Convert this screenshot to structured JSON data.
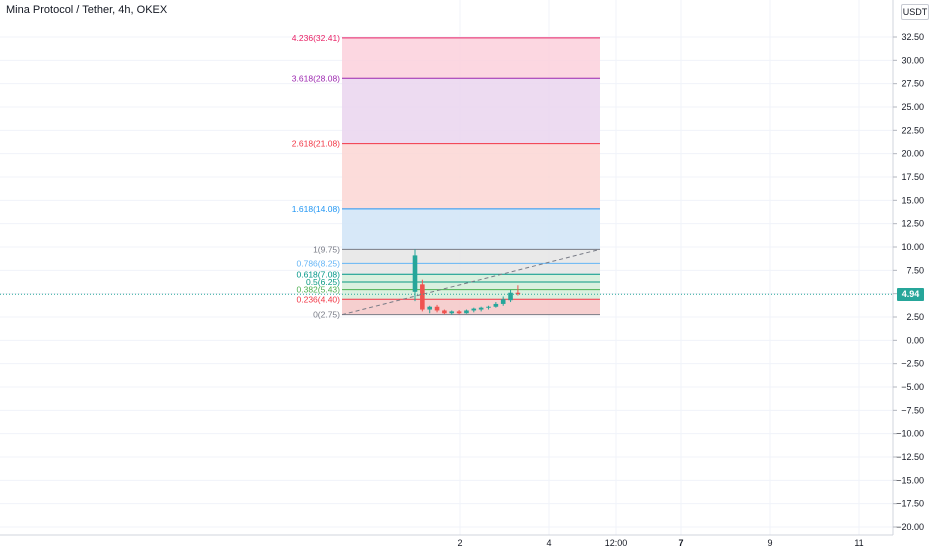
{
  "header": {
    "title": "Mina Protocol / Tether, 4h, OKEX",
    "currency": "USDT"
  },
  "chart_data": {
    "type": "candlestick",
    "current_price": "4.94",
    "y_axis": {
      "ylim": [
        -20.0,
        32.5
      ],
      "ticks": [
        "32.50",
        "30.00",
        "27.50",
        "25.00",
        "22.50",
        "20.00",
        "17.50",
        "15.00",
        "12.50",
        "10.00",
        "7.50",
        "5.00",
        "2.50",
        "0.00",
        "−2.50",
        "−5.00",
        "−7.50",
        "−10.00",
        "−12.50",
        "−15.00",
        "−17.50",
        "−20.00"
      ]
    },
    "x_axis": {
      "ticks": [
        {
          "label": "2",
          "bold": false
        },
        {
          "label": "4",
          "bold": false
        },
        {
          "label": "12:00",
          "bold": false
        },
        {
          "label": "7",
          "bold": true
        },
        {
          "label": "9",
          "bold": false
        },
        {
          "label": "11",
          "bold": false
        }
      ]
    },
    "fibonacci": [
      {
        "level": 0,
        "price": 2.75,
        "label": "0(2.75)",
        "color": "#787b86",
        "fill": "#f4c7c7"
      },
      {
        "level": 0.236,
        "price": 4.4,
        "label": "0.236(4.40)",
        "color": "#f23645",
        "fill": "#d4edd9"
      },
      {
        "level": 0.382,
        "price": 5.43,
        "label": "0.382(5.43)",
        "color": "#4caf50",
        "fill": "#d4edd9"
      },
      {
        "level": 0.5,
        "price": 6.25,
        "label": "0.5(6.25)",
        "color": "#089981",
        "fill": "#d4edd9"
      },
      {
        "level": 0.618,
        "price": 7.08,
        "label": "0.618(7.08)",
        "color": "#009688",
        "fill": "#e5e5e5"
      },
      {
        "level": 0.786,
        "price": 8.25,
        "label": "0.786(8.25)",
        "color": "#64b5f6",
        "fill": "#e5e5e5"
      },
      {
        "level": 1,
        "price": 9.75,
        "label": "1(9.75)",
        "color": "#787b86",
        "fill": "#d0e4f7"
      },
      {
        "level": 1.618,
        "price": 14.08,
        "label": "1.618(14.08)",
        "color": "#2196f3",
        "fill": "#fcd6d3"
      },
      {
        "level": 2.618,
        "price": 21.08,
        "label": "2.618(21.08)",
        "color": "#f23645",
        "fill": "#ead5ee"
      },
      {
        "level": 3.618,
        "price": 28.08,
        "label": "3.618(28.08)",
        "color": "#9c27b0",
        "fill": "#fcd0dc"
      },
      {
        "level": 4.236,
        "price": 32.41,
        "label": "4.236(32.41)",
        "color": "#e91e63",
        "fill": null
      }
    ],
    "candles": [
      {
        "o": 5.2,
        "h": 9.75,
        "l": 4.2,
        "c": 9.1
      },
      {
        "o": 6.0,
        "h": 6.5,
        "l": 3.1,
        "c": 3.3
      },
      {
        "o": 3.3,
        "h": 3.7,
        "l": 2.9,
        "c": 3.6
      },
      {
        "o": 3.6,
        "h": 3.8,
        "l": 3.0,
        "c": 3.2
      },
      {
        "o": 3.2,
        "h": 3.3,
        "l": 2.8,
        "c": 2.9
      },
      {
        "o": 2.9,
        "h": 3.2,
        "l": 2.75,
        "c": 3.1
      },
      {
        "o": 3.1,
        "h": 3.25,
        "l": 2.8,
        "c": 2.9
      },
      {
        "o": 2.9,
        "h": 3.3,
        "l": 2.85,
        "c": 3.2
      },
      {
        "o": 3.2,
        "h": 3.5,
        "l": 3.0,
        "c": 3.4
      },
      {
        "o": 3.3,
        "h": 3.6,
        "l": 3.1,
        "c": 3.5
      },
      {
        "o": 3.5,
        "h": 3.7,
        "l": 3.3,
        "c": 3.6
      },
      {
        "o": 3.6,
        "h": 4.1,
        "l": 3.5,
        "c": 3.9
      },
      {
        "o": 3.9,
        "h": 4.7,
        "l": 3.7,
        "c": 4.4
      },
      {
        "o": 4.3,
        "h": 5.4,
        "l": 4.1,
        "c": 5.1
      },
      {
        "o": 5.1,
        "h": 5.9,
        "l": 4.8,
        "c": 4.94
      }
    ],
    "trend_line": {
      "from_price": 2.75,
      "to_price": 9.75
    },
    "up_color": "#26a69a",
    "down_color": "#ef5350"
  }
}
